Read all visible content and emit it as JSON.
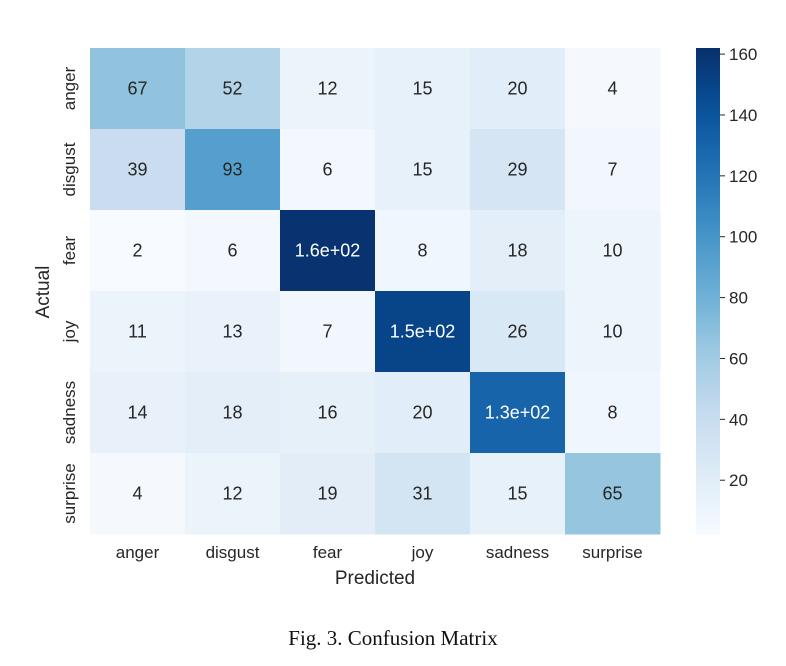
{
  "chart_data": {
    "type": "heatmap",
    "x_categories": [
      "anger",
      "disgust",
      "fear",
      "joy",
      "sadness",
      "surprise"
    ],
    "y_categories": [
      "anger",
      "disgust",
      "fear",
      "joy",
      "sadness",
      "surprise"
    ],
    "values": [
      [
        67,
        52,
        12,
        15,
        20,
        4
      ],
      [
        39,
        93,
        6,
        15,
        29,
        7
      ],
      [
        2,
        6,
        160,
        8,
        18,
        10
      ],
      [
        11,
        13,
        7,
        150,
        26,
        10
      ],
      [
        14,
        18,
        16,
        20,
        130,
        8
      ],
      [
        4,
        12,
        19,
        31,
        15,
        65
      ]
    ],
    "annotations": [
      [
        "67",
        "52",
        "12",
        "15",
        "20",
        "4"
      ],
      [
        "39",
        "93",
        "6",
        "15",
        "29",
        "7"
      ],
      [
        "2",
        "6",
        "1.6e+02",
        "8",
        "18",
        "10"
      ],
      [
        "11",
        "13",
        "7",
        "1.5e+02",
        "26",
        "10"
      ],
      [
        "14",
        "18",
        "16",
        "20",
        "1.3e+02",
        "8"
      ],
      [
        "4",
        "12",
        "19",
        "31",
        "15",
        "65"
      ]
    ],
    "xlabel": "Predicted",
    "ylabel": "Actual",
    "colormap": "Blues",
    "colorbar": {
      "range": [
        2,
        162
      ],
      "ticks": [
        20,
        40,
        60,
        80,
        100,
        120,
        140,
        160
      ]
    }
  },
  "caption": "Fig. 3.   Confusion Matrix"
}
